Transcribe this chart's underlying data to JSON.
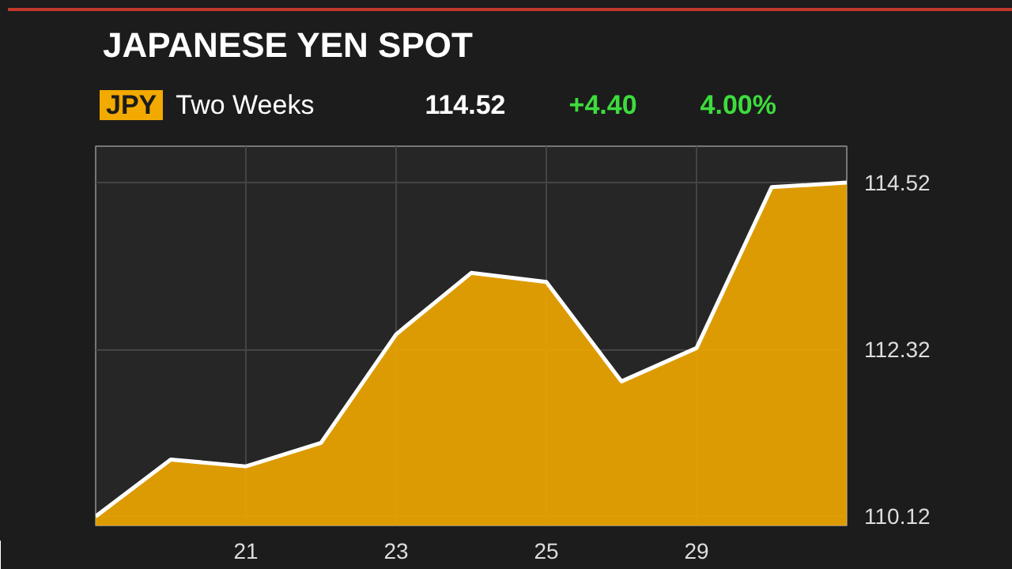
{
  "chart_data": {
    "type": "area",
    "title": "JAPANESE YEN SPOT",
    "subtitle": "Two Weeks",
    "annotations": [
      "JPY",
      "114.52",
      "+4.40",
      "4.00%"
    ],
    "categories": [
      null,
      null,
      "21",
      null,
      "23",
      null,
      "25",
      null,
      "29",
      null,
      null
    ],
    "series": [
      {
        "color": "#f2a900",
        "values": [
          110.12,
          110.87,
          110.78,
          111.09,
          112.52,
          113.33,
          113.21,
          111.9,
          112.34,
          114.46,
          114.52
        ]
      }
    ],
    "ylim": [
      110.0,
      115.0
    ],
    "yticks": [
      110.12,
      112.32,
      114.52
    ],
    "grid": true
  }
}
